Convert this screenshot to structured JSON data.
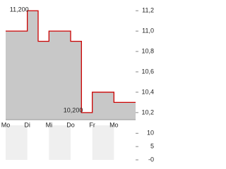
{
  "chart_data": [
    {
      "type": "area-step",
      "categories": [
        "Mo",
        null,
        "Di",
        null,
        "Mi",
        null,
        "Do",
        null,
        "Fr",
        null,
        "Mo",
        null
      ],
      "values": [
        11.0,
        11.0,
        11.2,
        10.9,
        11.0,
        11.0,
        10.9,
        10.2,
        10.4,
        10.4,
        10.3,
        10.3
      ],
      "color": "#cc0000",
      "fill": "#c8c8c8",
      "ylim": [
        10.13,
        11.25
      ],
      "yticks": [
        {
          "value": 10.2,
          "label": "10,2"
        },
        {
          "value": 10.4,
          "label": "10,4"
        },
        {
          "value": 10.6,
          "label": "10,6"
        },
        {
          "value": 10.8,
          "label": "10,8"
        },
        {
          "value": 11.0,
          "label": "11,0"
        },
        {
          "value": 11.2,
          "label": "11,2"
        }
      ],
      "annotations": [
        {
          "value": 11.2,
          "label": "11,200"
        },
        {
          "value": 10.2,
          "label": "10,200"
        }
      ]
    },
    {
      "type": "volume",
      "ylim": [
        0,
        13
      ],
      "yticks": [
        {
          "value": 10,
          "label": "10"
        },
        {
          "value": 5,
          "label": "5"
        },
        {
          "value": 0,
          "label": "-0"
        }
      ],
      "stripe": "#efefef"
    }
  ]
}
